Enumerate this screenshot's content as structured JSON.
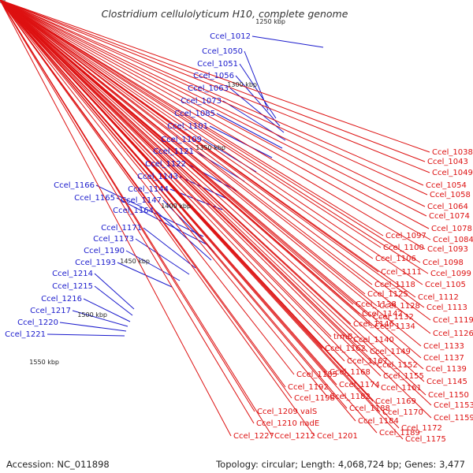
{
  "title": "Clostridium cellulolyticum H10, complete genome",
  "footer": {
    "accession": "Accession: NC_011898",
    "summary": "Topology: circular; Length: 4,068,724 bp; Genes: 3,477"
  },
  "colors": {
    "left_strand_labels": "#1a1acc",
    "right_strand_labels": "#dd1111",
    "backbone": "#8c8c8c",
    "gc_dots": "#2a8a2a"
  },
  "scale_ticks": [
    "1250 kbp",
    "1300 kbp",
    "1350 kbp",
    "1400 kbp",
    "1450 kbp",
    "1500 kbp",
    "1550 kbp"
  ],
  "left_labels": [
    "Ccel_1012",
    "Ccel_1050",
    "Ccel_1051",
    "Ccel_1056",
    "Ccel_1063",
    "Ccel_1073",
    "Ccel_1085",
    "Ccel_1101",
    "Ccel_1109",
    "Ccel_1121",
    "Ccel_1122",
    "Ccel_1143",
    "Ccel_1144",
    "Ccel_1166",
    "Ccel_1165",
    "Ccel_1147",
    "Ccel_1164",
    "Ccel_1171",
    "Ccel_1173",
    "Ccel_1190",
    "Ccel_1193",
    "Ccel_1214",
    "Ccel_1215",
    "Ccel_1216",
    "Ccel_1217",
    "Ccel_1220",
    "Ccel_1221"
  ],
  "right_labels": [
    "Ccel_1038",
    "Ccel_1043",
    "Ccel_1049",
    "Ccel_1054",
    "Ccel_1058",
    "Ccel_1064",
    "Ccel_1074",
    "Ccel_1078",
    "Ccel_1084",
    "Ccel_1097",
    "Ccel_1093",
    "Ccel_1100",
    "Ccel_1098",
    "Ccel_1106",
    "Ccel_1099",
    "Ccel_1111",
    "Ccel_1105",
    "Ccel_1118",
    "Ccel_1112",
    "Ccel_1125",
    "Ccel_1113",
    "Ccel_1128",
    "Ccel_1138",
    "Ccel_1119",
    "Ccel_1132",
    "Ccel_1142",
    "Ccel_1134",
    "Ccel_1146",
    "Ccel_1126",
    "trmB",
    "Ccel_1140",
    "Ccel_1133",
    "Ccel_1162",
    "Ccel_1149",
    "Ccel_1137",
    "Ccel_1167",
    "Ccel_1152",
    "Ccel_1139",
    "Ccel_1155",
    "Ccel_1185",
    "Ccel_1168",
    "Ccel_1145",
    "Ccel_1174",
    "Ccel_1161",
    "Ccel_1192",
    "Ccel_1150",
    "Ccel_1182",
    "Ccel_1198",
    "Ccel_1169",
    "Ccel_1153",
    "Ccel_1188",
    "Ccel_1170",
    "Ccel_1159",
    "Ccel_1209 valS",
    "Ccel_1184",
    "Ccel_1172",
    "Ccel_1210 nadE",
    "Ccel_1189",
    "Ccel_1175",
    "Ccel_1227",
    "Ccel_1212",
    "Ccel_1201"
  ]
}
